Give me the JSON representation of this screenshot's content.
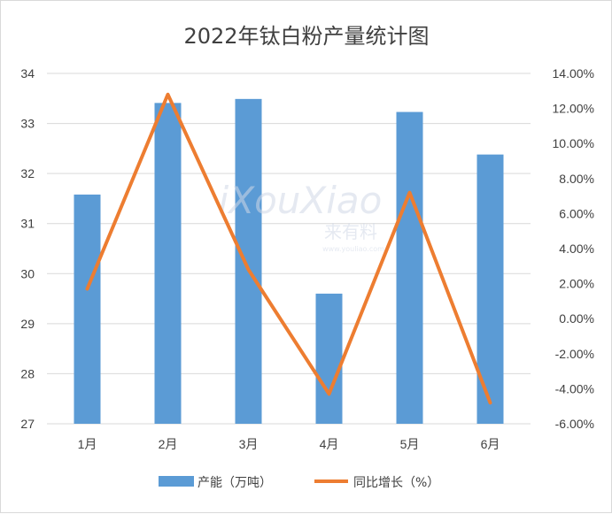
{
  "chart_data": {
    "type": "bar+line",
    "title": "2022年钛白粉产量统计图",
    "categories": [
      "1月",
      "2月",
      "3月",
      "4月",
      "5月",
      "6月"
    ],
    "series": [
      {
        "name": "产能（万吨）",
        "type": "bar",
        "axis": "left",
        "color": "#5b9bd5",
        "values": [
          31.58,
          33.41,
          33.49,
          29.6,
          33.23,
          32.38
        ]
      },
      {
        "name": "同比增长（%）",
        "type": "line",
        "axis": "right",
        "color": "#ed7d31",
        "values": [
          1.7,
          12.8,
          2.8,
          -4.3,
          7.2,
          -4.8
        ]
      }
    ],
    "y_left": {
      "min": 27,
      "max": 34,
      "step": 1,
      "tick_labels": [
        "27",
        "28",
        "29",
        "30",
        "31",
        "32",
        "33",
        "34"
      ]
    },
    "y_right": {
      "min": -6,
      "max": 14,
      "step": 2,
      "tick_labels": [
        "-6.00%",
        "-4.00%",
        "-2.00%",
        "0.00%",
        "2.00%",
        "4.00%",
        "6.00%",
        "8.00%",
        "10.00%",
        "12.00%",
        "14.00%"
      ]
    },
    "grid": true,
    "legend_position": "bottom"
  },
  "watermark": {
    "brand": "iXouXiao",
    "cn": "来有料",
    "url": "www.youliao.com"
  },
  "colors": {
    "gridline": "#d9d9d9",
    "text": "#404040"
  }
}
